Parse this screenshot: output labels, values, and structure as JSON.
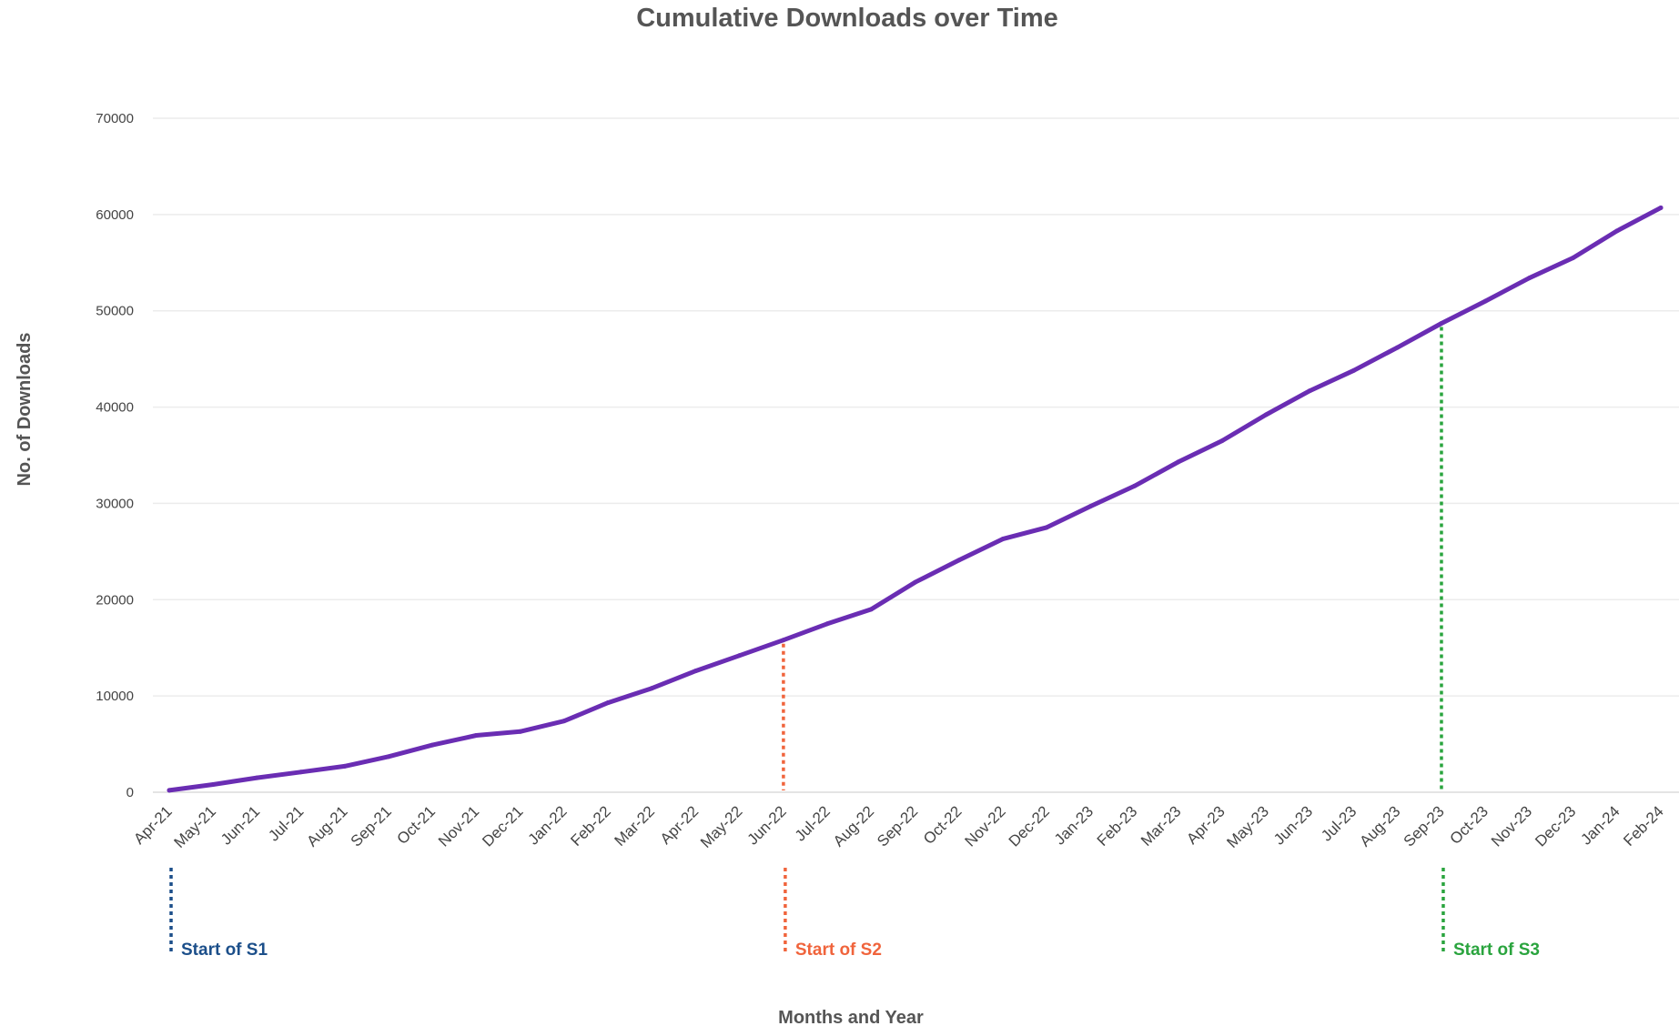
{
  "chart_data": {
    "type": "line",
    "title": "Cumulative Downloads over Time",
    "xlabel": "Months and Year",
    "ylabel": "No. of Downloads",
    "ylim": [
      0,
      70000
    ],
    "yticks": [
      0,
      10000,
      20000,
      30000,
      40000,
      50000,
      60000,
      70000
    ],
    "grid": true,
    "categories": [
      "Apr-21",
      "May-21",
      "Jun-21",
      "Jul-21",
      "Aug-21",
      "Sep-21",
      "Oct-21",
      "Nov-21",
      "Dec-21",
      "Jan-22",
      "Feb-22",
      "Mar-22",
      "Apr-22",
      "May-22",
      "Jun-22",
      "Jul-22",
      "Aug-22",
      "Sep-22",
      "Oct-22",
      "Nov-22",
      "Dec-22",
      "Jan-23",
      "Feb-23",
      "Mar-23",
      "Apr-23",
      "May-23",
      "Jun-23",
      "Jul-23",
      "Aug-23",
      "Sep-23",
      "Oct-23",
      "Nov-23",
      "Dec-23",
      "Jan-24",
      "Feb-24"
    ],
    "series": [
      {
        "color": "#6a2db3",
        "values": [
          200,
          800,
          1500,
          2100,
          2700,
          3700,
          4900,
          5900,
          6300,
          7400,
          9300,
          10800,
          12600,
          14200,
          15800,
          17500,
          19000,
          21800,
          24100,
          26300,
          27500,
          29700,
          31800,
          34300,
          36500,
          39200,
          41700,
          43800,
          46200,
          48700,
          51000,
          53400,
          55500,
          58300,
          60700
        ]
      }
    ],
    "annotations": [
      {
        "label": "Start of S1",
        "category": "Apr-21",
        "color": "#1c4f8a"
      },
      {
        "label": "Start of S2",
        "category": "Jun-22",
        "color": "#f0643c"
      },
      {
        "label": "Start of S3",
        "category": "Sep-23",
        "color": "#2aa43e"
      }
    ]
  }
}
